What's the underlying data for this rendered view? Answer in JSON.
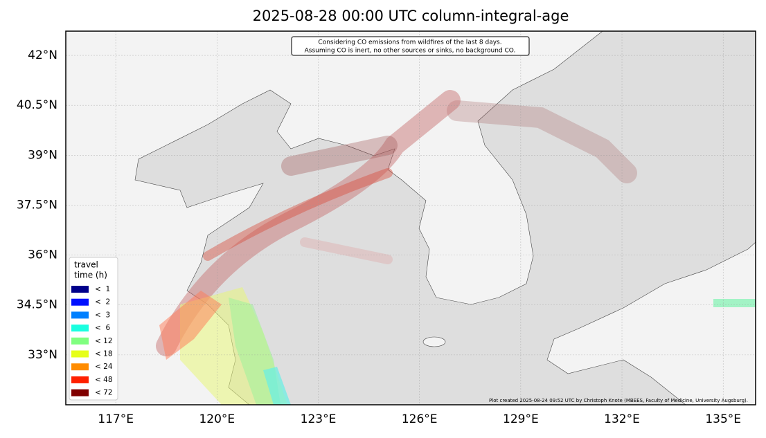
{
  "map": {
    "title": "2025-08-28 00:00 UTC column-integral-age",
    "annotation": [
      "Considering CO emissions from wildfires of the last 8 days.",
      "Assuming CO is inert, no other sources or sinks, no background CO."
    ],
    "credit": "Plot created 2025-08-24 09:52 UTC by Christoph Knote (MBEES, Faculty of Medicine, University Augsburg).",
    "xlim": [
      115.52,
      135.96
    ],
    "ylim": [
      31.5,
      42.73
    ],
    "xticks": [
      {
        "value": 117,
        "label": "117°E"
      },
      {
        "value": 120,
        "label": "120°E"
      },
      {
        "value": 123,
        "label": "123°E"
      },
      {
        "value": 126,
        "label": "126°E"
      },
      {
        "value": 129,
        "label": "129°E"
      },
      {
        "value": 132,
        "label": "132°E"
      },
      {
        "value": 135,
        "label": "135°E"
      }
    ],
    "yticks": [
      {
        "value": 33,
        "label": "33°N"
      },
      {
        "value": 34.5,
        "label": "34.5°N"
      },
      {
        "value": 36,
        "label": "36°N"
      },
      {
        "value": 37.5,
        "label": "37.5°N"
      },
      {
        "value": 39,
        "label": "39°N"
      },
      {
        "value": 40.5,
        "label": "40.5°N"
      },
      {
        "value": 42,
        "label": "42°N"
      }
    ],
    "grid": true,
    "legend": {
      "title": [
        "travel",
        "time (h)"
      ],
      "items": [
        {
          "label": "<  1",
          "color": "#00008b"
        },
        {
          "label": "<  2",
          "color": "#0010ff"
        },
        {
          "label": "<  3",
          "color": "#0080ff"
        },
        {
          "label": "<  6",
          "color": "#1affe0"
        },
        {
          "label": "< 12",
          "color": "#80ff80"
        },
        {
          "label": "< 18",
          "color": "#e6ff1a"
        },
        {
          "label": "< 24",
          "color": "#ff8c00"
        },
        {
          "label": "< 48",
          "color": "#ff2000"
        },
        {
          "label": "< 72",
          "color": "#800000"
        }
      ]
    }
  }
}
